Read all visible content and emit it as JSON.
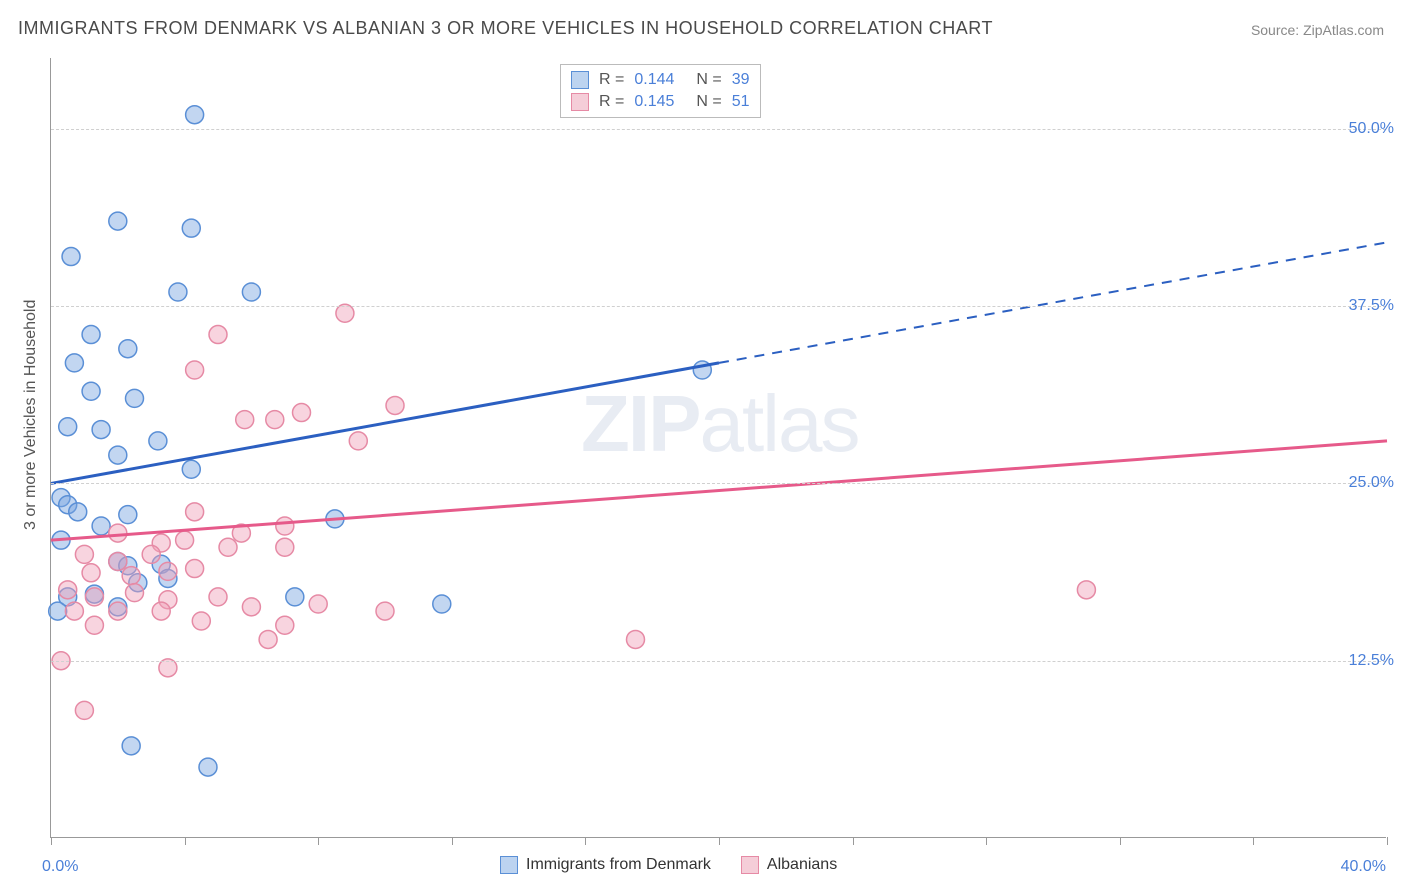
{
  "title": "IMMIGRANTS FROM DENMARK VS ALBANIAN 3 OR MORE VEHICLES IN HOUSEHOLD CORRELATION CHART",
  "source": "Source: ZipAtlas.com",
  "watermark": {
    "bold": "ZIP",
    "light": "atlas"
  },
  "y_axis_label": "3 or more Vehicles in Household",
  "plot": {
    "background_color": "#ffffff",
    "grid_color": "#d0d0d0",
    "axis_color": "#999999",
    "xlim": [
      0,
      40
    ],
    "ylim": [
      0,
      55
    ],
    "x_ticks": [
      0,
      4,
      8,
      12,
      16,
      20,
      24,
      28,
      32,
      36,
      40
    ],
    "x_tick_labels": {
      "0": "0.0%",
      "40": "40.0%"
    },
    "y_grid": [
      12.5,
      25.0,
      37.5,
      50.0
    ],
    "y_tick_labels": [
      "12.5%",
      "25.0%",
      "37.5%",
      "50.0%"
    ],
    "label_color": "#4a7fd8",
    "label_fontsize": 16
  },
  "stats_legend": {
    "rows": [
      {
        "swatch_fill": "#bcd3f0",
        "swatch_stroke": "#5a8fd6",
        "R_label": "R =",
        "R_value": "0.144",
        "N_label": "N =",
        "N_value": "39"
      },
      {
        "swatch_fill": "#f5cdd8",
        "swatch_stroke": "#e68aa5",
        "R_label": "R =",
        "R_value": "0.145",
        "N_label": "N =",
        "N_value": "51"
      }
    ],
    "text_color": "#555",
    "value_color": "#4a7fd8"
  },
  "bottom_legend": {
    "items": [
      {
        "swatch_fill": "#bcd3f0",
        "swatch_stroke": "#5a8fd6",
        "label": "Immigrants from Denmark"
      },
      {
        "swatch_fill": "#f5cdd8",
        "swatch_stroke": "#e68aa5",
        "label": "Albanians"
      }
    ]
  },
  "series": [
    {
      "name": "Immigrants from Denmark",
      "marker_fill": "rgba(120,165,225,0.45)",
      "marker_stroke": "#5a8fd6",
      "marker_radius": 9,
      "line_color": "#2b5fc1",
      "line_width": 3,
      "trend_solid": {
        "x1": 0,
        "y1": 25.0,
        "x2": 20,
        "y2": 33.5
      },
      "trend_dashed": {
        "x1": 20,
        "y1": 33.5,
        "x2": 40,
        "y2": 42.0
      },
      "points": [
        [
          4.3,
          51.0
        ],
        [
          2.0,
          43.5
        ],
        [
          4.2,
          43.0
        ],
        [
          0.6,
          41.0
        ],
        [
          3.8,
          38.5
        ],
        [
          6.0,
          38.5
        ],
        [
          1.2,
          35.5
        ],
        [
          2.3,
          34.5
        ],
        [
          0.7,
          33.5
        ],
        [
          1.2,
          31.5
        ],
        [
          2.5,
          31.0
        ],
        [
          0.5,
          29.0
        ],
        [
          1.5,
          28.8
        ],
        [
          3.2,
          28.0
        ],
        [
          2.0,
          27.0
        ],
        [
          4.2,
          26.0
        ],
        [
          19.5,
          33.0
        ],
        [
          0.3,
          24.0
        ],
        [
          0.5,
          23.5
        ],
        [
          0.8,
          23.0
        ],
        [
          1.5,
          22.0
        ],
        [
          2.3,
          22.8
        ],
        [
          8.5,
          22.5
        ],
        [
          0.3,
          21.0
        ],
        [
          2.0,
          19.5
        ],
        [
          2.3,
          19.2
        ],
        [
          3.3,
          19.3
        ],
        [
          0.5,
          17.0
        ],
        [
          1.3,
          17.2
        ],
        [
          2.6,
          18.0
        ],
        [
          3.5,
          18.3
        ],
        [
          7.3,
          17.0
        ],
        [
          0.2,
          16.0
        ],
        [
          2.0,
          16.3
        ],
        [
          11.7,
          16.5
        ],
        [
          2.4,
          6.5
        ],
        [
          4.7,
          5.0
        ]
      ]
    },
    {
      "name": "Albanians",
      "marker_fill": "rgba(240,160,185,0.45)",
      "marker_stroke": "#e68aa5",
      "marker_radius": 9,
      "line_color": "#e65a8a",
      "line_width": 3,
      "trend_solid": {
        "x1": 0,
        "y1": 21.0,
        "x2": 40,
        "y2": 28.0
      },
      "trend_dashed": null,
      "points": [
        [
          8.8,
          37.0
        ],
        [
          5.0,
          35.5
        ],
        [
          4.3,
          33.0
        ],
        [
          7.5,
          30.0
        ],
        [
          5.8,
          29.5
        ],
        [
          6.7,
          29.5
        ],
        [
          9.2,
          28.0
        ],
        [
          10.3,
          30.5
        ],
        [
          4.3,
          23.0
        ],
        [
          5.7,
          21.5
        ],
        [
          7.0,
          22.0
        ],
        [
          2.0,
          21.5
        ],
        [
          3.3,
          20.8
        ],
        [
          4.0,
          21.0
        ],
        [
          5.3,
          20.5
        ],
        [
          7.0,
          20.5
        ],
        [
          1.0,
          20.0
        ],
        [
          2.0,
          19.5
        ],
        [
          3.0,
          20.0
        ],
        [
          1.2,
          18.7
        ],
        [
          2.4,
          18.5
        ],
        [
          3.5,
          18.8
        ],
        [
          4.3,
          19.0
        ],
        [
          0.5,
          17.5
        ],
        [
          1.3,
          17.0
        ],
        [
          2.5,
          17.3
        ],
        [
          3.5,
          16.8
        ],
        [
          5.0,
          17.0
        ],
        [
          0.7,
          16.0
        ],
        [
          2.0,
          16.0
        ],
        [
          3.3,
          16.0
        ],
        [
          6.0,
          16.3
        ],
        [
          8.0,
          16.5
        ],
        [
          1.3,
          15.0
        ],
        [
          4.5,
          15.3
        ],
        [
          7.0,
          15.0
        ],
        [
          10.0,
          16.0
        ],
        [
          6.5,
          14.0
        ],
        [
          17.5,
          14.0
        ],
        [
          31.0,
          17.5
        ],
        [
          0.3,
          12.5
        ],
        [
          3.5,
          12.0
        ],
        [
          1.0,
          9.0
        ]
      ]
    }
  ]
}
